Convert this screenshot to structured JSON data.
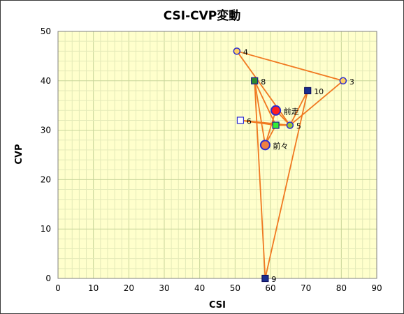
{
  "chart_data": {
    "type": "scatter",
    "title": "CSI-CVP変動",
    "xlabel": "CSI",
    "ylabel": "CVP",
    "xlim": [
      0,
      90
    ],
    "ylim": [
      0,
      50
    ],
    "x_ticks": [
      "0",
      "10",
      "20",
      "30",
      "40",
      "50",
      "60",
      "70",
      "80",
      "90"
    ],
    "y_ticks": [
      "0",
      "10",
      "20",
      "30",
      "40",
      "50"
    ],
    "grid": true,
    "colors": {
      "plot_bg": "#ffffcc",
      "grid_major": "#c8d59a",
      "grid_minor": "#e4eab8",
      "line": "#f07820"
    },
    "points": [
      {
        "label": "前々",
        "x": 58.5,
        "y": 27,
        "marker": "circle",
        "fill": "#f08040",
        "stroke": "#2b2bd0",
        "big": true
      },
      {
        "label": "前走",
        "x": 61.5,
        "y": 34,
        "marker": "circle",
        "fill": "#ff2020",
        "stroke": "#2b2bd0",
        "big": true
      },
      {
        "label": "3",
        "x": 80.5,
        "y": 40,
        "marker": "circle",
        "fill": "#ffd060",
        "stroke": "#2b2bd0",
        "big": false
      },
      {
        "label": "4",
        "x": 50.5,
        "y": 46,
        "marker": "circle",
        "fill": "#ffd060",
        "stroke": "#2b2bd0",
        "big": false
      },
      {
        "label": "5",
        "x": 65.5,
        "y": 31,
        "marker": "circle",
        "fill": "#99cc33",
        "stroke": "#2b2bd0",
        "big": false
      },
      {
        "label": "6",
        "x": 51.5,
        "y": 32,
        "marker": "square",
        "fill": "#ffffff",
        "stroke": "#2b2bd0",
        "big": false
      },
      {
        "label": "8",
        "x": 55.5,
        "y": 40,
        "marker": "square",
        "fill": "#2e8b2e",
        "stroke": "#1a1a90",
        "big": false
      },
      {
        "label": "9",
        "x": 58.5,
        "y": 0,
        "marker": "square",
        "fill": "#1a2f8f",
        "stroke": "#101060",
        "big": false
      },
      {
        "label": "10",
        "x": 70.5,
        "y": 38,
        "marker": "square",
        "fill": "#1a2f8f",
        "stroke": "#101060",
        "big": false
      },
      {
        "label": "",
        "x": 61.5,
        "y": 31,
        "marker": "square",
        "fill": "#33ee33",
        "stroke": "#1a1a90",
        "big": false
      }
    ],
    "segments": [
      [
        [
          58.5,
          27
        ],
        [
          61.5,
          34
        ]
      ],
      [
        [
          61.5,
          34
        ],
        [
          65.5,
          31
        ]
      ],
      [
        [
          65.5,
          31
        ],
        [
          51.5,
          32
        ]
      ],
      [
        [
          51.5,
          32
        ],
        [
          61.5,
          31
        ]
      ],
      [
        [
          61.5,
          31
        ],
        [
          58.5,
          27
        ]
      ],
      [
        [
          58.5,
          27
        ],
        [
          55.5,
          40
        ]
      ],
      [
        [
          55.5,
          40
        ],
        [
          61.5,
          31
        ]
      ],
      [
        [
          61.5,
          31
        ],
        [
          65.5,
          31
        ]
      ],
      [
        [
          55.5,
          40
        ],
        [
          58.5,
          0
        ]
      ],
      [
        [
          58.5,
          0
        ],
        [
          70.5,
          38
        ]
      ],
      [
        [
          70.5,
          38
        ],
        [
          65.5,
          31
        ]
      ],
      [
        [
          65.5,
          31
        ],
        [
          80.5,
          40
        ]
      ],
      [
        [
          80.5,
          40
        ],
        [
          50.5,
          46
        ]
      ],
      [
        [
          50.5,
          46
        ],
        [
          65.5,
          31
        ]
      ]
    ]
  }
}
